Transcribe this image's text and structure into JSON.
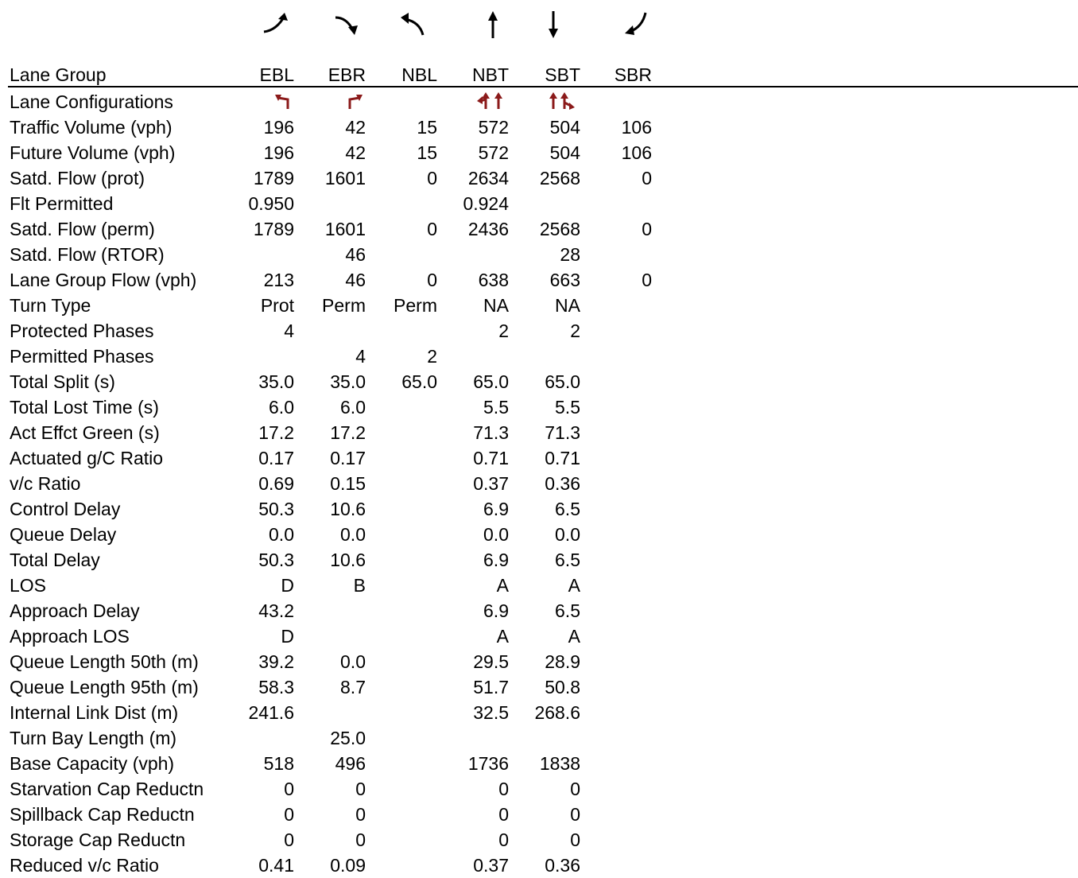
{
  "movements": [
    {
      "code": "EBL",
      "movement_icon": "eastbound-left-turn-arrow",
      "lane_config_icon": "single-left-turn-lane"
    },
    {
      "code": "EBR",
      "movement_icon": "eastbound-right-turn-arrow",
      "lane_config_icon": "single-right-turn-lane"
    },
    {
      "code": "NBL",
      "movement_icon": "northbound-left-turn-arrow",
      "lane_config_icon": ""
    },
    {
      "code": "NBT",
      "movement_icon": "northbound-through-arrow",
      "lane_config_icon": "left-through-and-through-lanes"
    },
    {
      "code": "SBT",
      "movement_icon": "southbound-through-arrow",
      "lane_config_icon": "through-and-through-right-lanes"
    },
    {
      "code": "SBR",
      "movement_icon": "southbound-right-turn-arrow",
      "lane_config_icon": ""
    }
  ],
  "colors": {
    "text": "#000000",
    "lane_config_symbols": "#8b1a1a",
    "rule": "#000000"
  },
  "header": {
    "label": "Lane Group"
  },
  "rows": [
    {
      "label": "Lane Configurations",
      "values": [
        "",
        "",
        "",
        "",
        "",
        ""
      ]
    },
    {
      "label": "Traffic Volume (vph)",
      "values": [
        "196",
        "42",
        "15",
        "572",
        "504",
        "106"
      ]
    },
    {
      "label": "Future Volume (vph)",
      "values": [
        "196",
        "42",
        "15",
        "572",
        "504",
        "106"
      ]
    },
    {
      "label": "Satd. Flow (prot)",
      "values": [
        "1789",
        "1601",
        "0",
        "2634",
        "2568",
        "0"
      ]
    },
    {
      "label": "Flt Permitted",
      "values": [
        "0.950",
        "",
        "",
        "0.924",
        "",
        ""
      ]
    },
    {
      "label": "Satd. Flow (perm)",
      "values": [
        "1789",
        "1601",
        "0",
        "2436",
        "2568",
        "0"
      ]
    },
    {
      "label": "Satd. Flow (RTOR)",
      "values": [
        "",
        "46",
        "",
        "",
        "28",
        ""
      ]
    },
    {
      "label": "Lane Group Flow (vph)",
      "values": [
        "213",
        "46",
        "0",
        "638",
        "663",
        "0"
      ]
    },
    {
      "label": "Turn Type",
      "values": [
        "Prot",
        "Perm",
        "Perm",
        "NA",
        "NA",
        ""
      ]
    },
    {
      "label": "Protected Phases",
      "values": [
        "4",
        "",
        "",
        "2",
        "2",
        ""
      ]
    },
    {
      "label": "Permitted Phases",
      "values": [
        "",
        "4",
        "2",
        "",
        "",
        ""
      ]
    },
    {
      "label": "Total Split (s)",
      "values": [
        "35.0",
        "35.0",
        "65.0",
        "65.0",
        "65.0",
        ""
      ]
    },
    {
      "label": "Total Lost Time (s)",
      "values": [
        "6.0",
        "6.0",
        "",
        "5.5",
        "5.5",
        ""
      ]
    },
    {
      "label": "Act Effct Green (s)",
      "values": [
        "17.2",
        "17.2",
        "",
        "71.3",
        "71.3",
        ""
      ]
    },
    {
      "label": "Actuated g/C Ratio",
      "values": [
        "0.17",
        "0.17",
        "",
        "0.71",
        "0.71",
        ""
      ]
    },
    {
      "label": "v/c Ratio",
      "values": [
        "0.69",
        "0.15",
        "",
        "0.37",
        "0.36",
        ""
      ]
    },
    {
      "label": "Control Delay",
      "values": [
        "50.3",
        "10.6",
        "",
        "6.9",
        "6.5",
        ""
      ]
    },
    {
      "label": "Queue Delay",
      "values": [
        "0.0",
        "0.0",
        "",
        "0.0",
        "0.0",
        ""
      ]
    },
    {
      "label": "Total Delay",
      "values": [
        "50.3",
        "10.6",
        "",
        "6.9",
        "6.5",
        ""
      ]
    },
    {
      "label": "LOS",
      "values": [
        "D",
        "B",
        "",
        "A",
        "A",
        ""
      ]
    },
    {
      "label": "Approach Delay",
      "values": [
        "43.2",
        "",
        "",
        "6.9",
        "6.5",
        ""
      ]
    },
    {
      "label": "Approach LOS",
      "values": [
        "D",
        "",
        "",
        "A",
        "A",
        ""
      ]
    },
    {
      "label": "Queue Length 50th (m)",
      "values": [
        "39.2",
        "0.0",
        "",
        "29.5",
        "28.9",
        ""
      ]
    },
    {
      "label": "Queue Length 95th (m)",
      "values": [
        "58.3",
        "8.7",
        "",
        "51.7",
        "50.8",
        ""
      ]
    },
    {
      "label": "Internal Link Dist (m)",
      "values": [
        "241.6",
        "",
        "",
        "32.5",
        "268.6",
        ""
      ]
    },
    {
      "label": "Turn Bay Length (m)",
      "values": [
        "",
        "25.0",
        "",
        "",
        "",
        ""
      ]
    },
    {
      "label": "Base Capacity (vph)",
      "values": [
        "518",
        "496",
        "",
        "1736",
        "1838",
        ""
      ]
    },
    {
      "label": "Starvation Cap Reductn",
      "values": [
        "0",
        "0",
        "",
        "0",
        "0",
        ""
      ]
    },
    {
      "label": "Spillback Cap Reductn",
      "values": [
        "0",
        "0",
        "",
        "0",
        "0",
        ""
      ]
    },
    {
      "label": "Storage Cap Reductn",
      "values": [
        "0",
        "0",
        "",
        "0",
        "0",
        ""
      ]
    },
    {
      "label": "Reduced v/c Ratio",
      "values": [
        "0.41",
        "0.09",
        "",
        "0.37",
        "0.36",
        ""
      ]
    }
  ]
}
